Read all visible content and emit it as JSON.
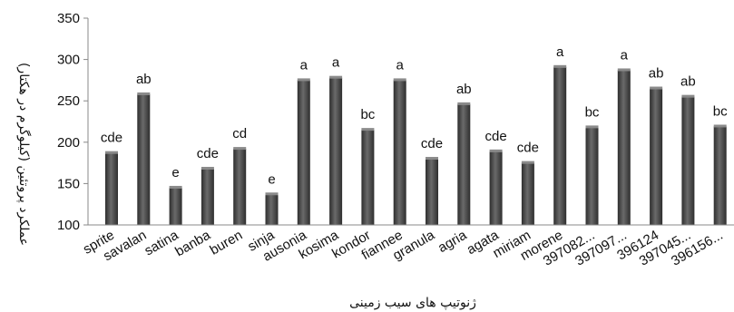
{
  "chart_data": {
    "type": "bar",
    "xlabel": "ژنوتیپ های سیب زمینی",
    "ylabel": "عملکرد پروتئین (کیلوگرم در هکتار)",
    "ylim": [
      100,
      350
    ],
    "yticks": [
      "100",
      "150",
      "200",
      "250",
      "300",
      "350"
    ],
    "grid": false,
    "categories": [
      "sprite",
      "savalan",
      "satina",
      "banba",
      "buren",
      "sinja",
      "ausonia",
      "kosima",
      "kondor",
      "fiannee",
      "granula",
      "agria",
      "agata",
      "miriam",
      "morene",
      "397082...",
      "397097...",
      "396124",
      "397045...",
      "396156..."
    ],
    "values": [
      187,
      258,
      145,
      168,
      192,
      137,
      275,
      278,
      215,
      275,
      180,
      246,
      189,
      175,
      291,
      218,
      287,
      265,
      255,
      219
    ],
    "labels": [
      "cde",
      "ab",
      "e",
      "cde",
      "cd",
      "e",
      "a",
      "a",
      "bc",
      "a",
      "cde",
      "ab",
      "cde",
      "cde",
      "a",
      "bc",
      "a",
      "ab",
      "ab",
      "bc"
    ],
    "bar_color": "#4a4a4a"
  }
}
